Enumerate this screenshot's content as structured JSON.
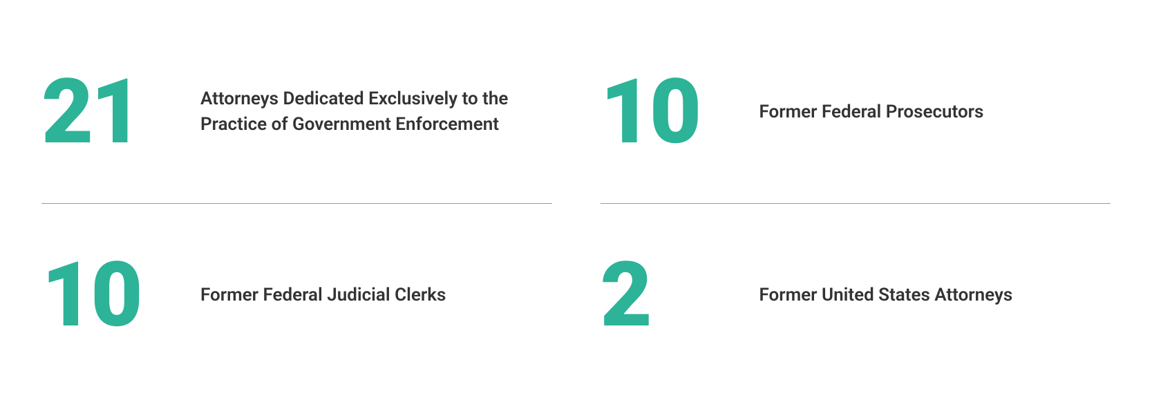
{
  "stats": [
    {
      "number": "21",
      "label": "Attorneys Dedicated Exclusively to the Practice of Government Enforcement"
    },
    {
      "number": "10",
      "label": "Former Federal Prosecutors"
    },
    {
      "number": "10",
      "label": "Former Federal Judicial Clerks"
    },
    {
      "number": "2",
      "label": "Former United States Attorneys"
    }
  ],
  "colors": {
    "number": "#2cb398",
    "label": "#333333",
    "divider": "#999999",
    "background": "#ffffff"
  },
  "typography": {
    "number_fontsize": 130,
    "number_weight": 900,
    "label_fontsize": 26,
    "label_weight": 600
  }
}
